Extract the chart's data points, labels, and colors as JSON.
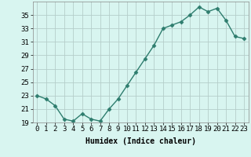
{
  "x": [
    0,
    1,
    2,
    3,
    4,
    5,
    6,
    7,
    8,
    9,
    10,
    11,
    12,
    13,
    14,
    15,
    16,
    17,
    18,
    19,
    20,
    21,
    22,
    23
  ],
  "y": [
    23.0,
    22.5,
    21.5,
    19.5,
    19.2,
    20.3,
    19.5,
    19.2,
    21.0,
    22.5,
    24.5,
    26.5,
    28.5,
    30.5,
    33.0,
    33.5,
    34.0,
    35.0,
    36.2,
    35.5,
    36.0,
    34.2,
    31.8,
    31.5
  ],
  "line_color": "#2e7d6e",
  "marker": "D",
  "marker_size": 2.5,
  "bg_color": "#d8f5f0",
  "grid_color": "#b5ceca",
  "xlabel": "Humidex (Indice chaleur)",
  "ylim": [
    19,
    37
  ],
  "xlim": [
    -0.5,
    23.5
  ],
  "yticks": [
    19,
    21,
    23,
    25,
    27,
    29,
    31,
    33,
    35
  ],
  "xticks": [
    0,
    1,
    2,
    3,
    4,
    5,
    6,
    7,
    8,
    9,
    10,
    11,
    12,
    13,
    14,
    15,
    16,
    17,
    18,
    19,
    20,
    21,
    22,
    23
  ],
  "label_fontsize": 7,
  "tick_fontsize": 6.5
}
